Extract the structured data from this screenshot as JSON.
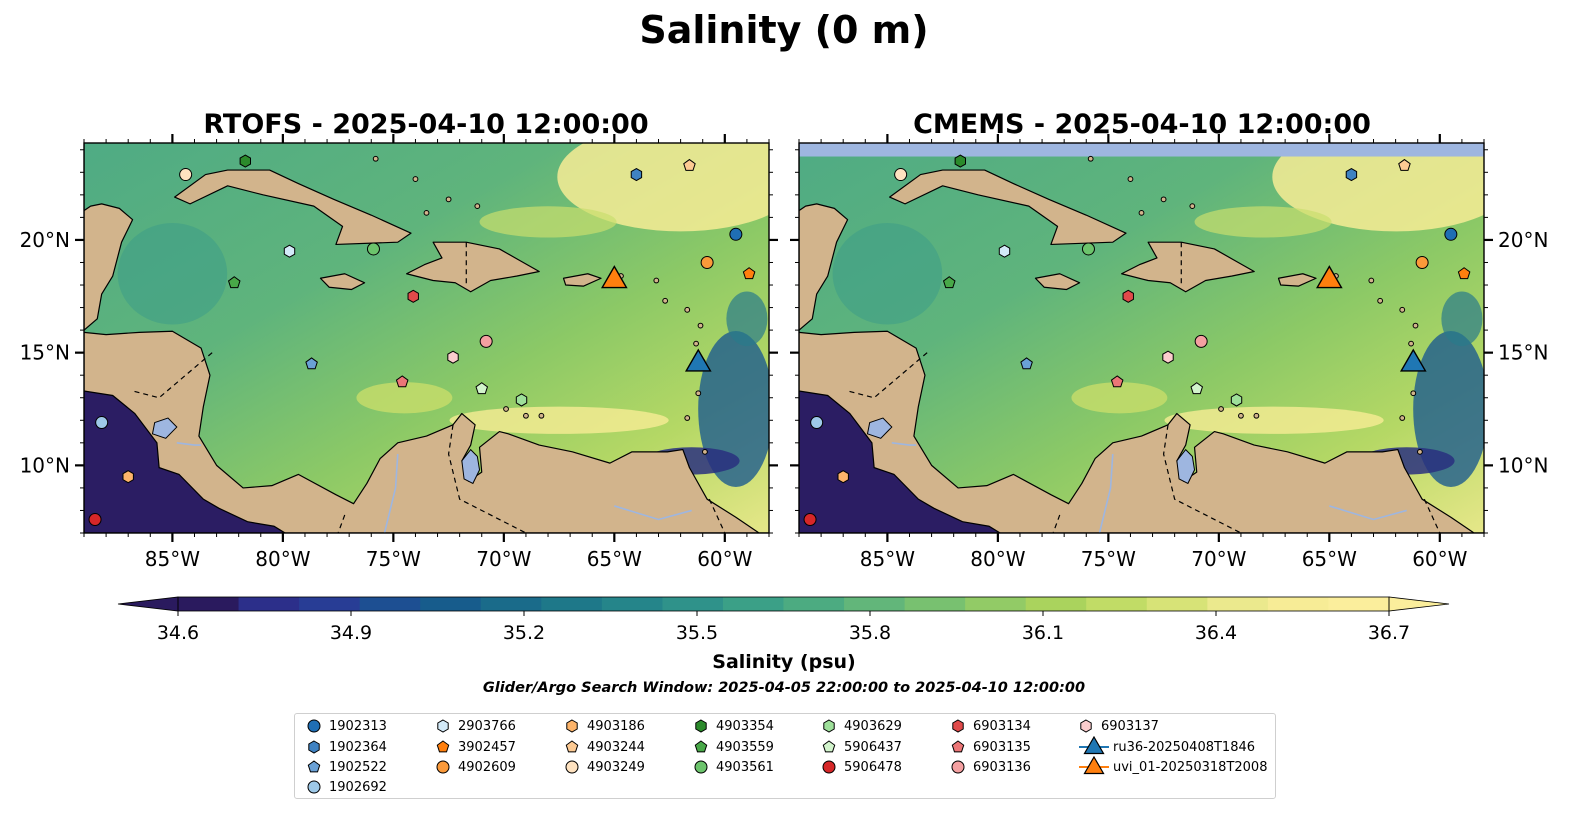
{
  "figure": {
    "suptitle": "Salinity (0 m)",
    "search_window": "Glider/Argo Search Window: 2025-04-05 22:00:00 to 2025-04-10 12:00:00"
  },
  "panels": [
    {
      "id": "rtofs",
      "title": "RTOFS - 2025-04-10 12:00:00"
    },
    {
      "id": "cmems",
      "title": "CMEMS - 2025-04-10 12:00:00"
    }
  ],
  "axes": {
    "lon_ticks": [
      "85°W",
      "80°W",
      "75°W",
      "70°W",
      "65°W",
      "60°W"
    ],
    "lon_values": [
      -85,
      -80,
      -75,
      -70,
      -65,
      -60
    ],
    "lat_ticks": [
      "20°N",
      "15°N",
      "10°N"
    ],
    "lat_values": [
      20,
      15,
      10
    ],
    "lon_range": [
      -89,
      -58
    ],
    "lat_range": [
      7,
      24.3
    ]
  },
  "colorbar": {
    "label": "Salinity (psu)",
    "ticks": [
      "34.6",
      "34.9",
      "35.2",
      "35.5",
      "35.8",
      "36.1",
      "36.4",
      "36.7"
    ],
    "range": [
      34.6,
      36.7
    ],
    "extend": "both",
    "colors": [
      "#2a1a5e",
      "#2c2f8a",
      "#283d95",
      "#1d4f92",
      "#175c8c",
      "#1a6b8a",
      "#1e7889",
      "#25858a",
      "#2f928a",
      "#3ba087",
      "#4cab81",
      "#62b67a",
      "#78c170",
      "#92cb66",
      "#aad35d",
      "#c1dc66",
      "#d7e377",
      "#ebe98d",
      "#f7ec96",
      "#fbee9c"
    ]
  },
  "colors": {
    "land": "#d2b48c",
    "lake": "#9eb6e0",
    "deep": "#2b1d63",
    "ocean_mid": "#55ad83",
    "ocean_high": "#f7ec95",
    "glider_ru36": "#1f77b4",
    "glider_uvi": "#ff7f0e"
  },
  "legend": {
    "items": [
      {
        "label": "1902313",
        "marker": "circle",
        "color": "#1f6eb4"
      },
      {
        "label": "1902364",
        "marker": "hexagon",
        "color": "#3f82c2"
      },
      {
        "label": "1902522",
        "marker": "pentagon",
        "color": "#6aa1d6"
      },
      {
        "label": "1902692",
        "marker": "circle",
        "color": "#9ec9e8"
      },
      {
        "label": "2903766",
        "marker": "hexagon",
        "color": "#d3eaf8"
      },
      {
        "label": "3902457",
        "marker": "pentagon",
        "color": "#ff7f0e"
      },
      {
        "label": "4902609",
        "marker": "circle",
        "color": "#fb9a3a"
      },
      {
        "label": "4903186",
        "marker": "hexagon",
        "color": "#fdb46a"
      },
      {
        "label": "4903244",
        "marker": "pentagon",
        "color": "#fdca93"
      },
      {
        "label": "4903249",
        "marker": "circle",
        "color": "#fee2c0"
      },
      {
        "label": "4903354",
        "marker": "hexagon",
        "color": "#2b8a2b"
      },
      {
        "label": "4903559",
        "marker": "pentagon",
        "color": "#48a848"
      },
      {
        "label": "4903561",
        "marker": "circle",
        "color": "#6cc46c"
      },
      {
        "label": "4903629",
        "marker": "hexagon",
        "color": "#9ee09a"
      },
      {
        "label": "5906437",
        "marker": "pentagon",
        "color": "#d2f4cc"
      },
      {
        "label": "5906478",
        "marker": "circle",
        "color": "#d62728"
      },
      {
        "label": "6903134",
        "marker": "hexagon",
        "color": "#e04a4a"
      },
      {
        "label": "6903135",
        "marker": "pentagon",
        "color": "#ec7677"
      },
      {
        "label": "6903136",
        "marker": "circle",
        "color": "#f4a0a1"
      },
      {
        "label": "6903137",
        "marker": "hexagon",
        "color": "#fbcdcd"
      },
      {
        "label": "ru36-20250408T1846",
        "marker": "triangle",
        "color": "#1f77b4"
      },
      {
        "label": "uvi_01-20250318T2008",
        "marker": "triangle",
        "color": "#ff7f0e"
      }
    ]
  },
  "floats": [
    {
      "id": "1902313",
      "lon": -59.5,
      "lat": 20.25
    },
    {
      "id": "1902364",
      "lon": -64.0,
      "lat": 22.9
    },
    {
      "id": "1902522",
      "lon": -78.7,
      "lat": 14.5
    },
    {
      "id": "1902692",
      "lon": -88.2,
      "lat": 11.9
    },
    {
      "id": "2903766",
      "lon": -79.7,
      "lat": 19.5
    },
    {
      "id": "3902457",
      "lon": -58.9,
      "lat": 18.5
    },
    {
      "id": "4902609",
      "lon": -60.8,
      "lat": 19.0
    },
    {
      "id": "4903186",
      "lon": -87.0,
      "lat": 9.5
    },
    {
      "id": "4903244",
      "lon": -61.6,
      "lat": 23.3
    },
    {
      "id": "4903249",
      "lon": -84.4,
      "lat": 22.9
    },
    {
      "id": "4903354",
      "lon": -81.7,
      "lat": 23.5
    },
    {
      "id": "4903559",
      "lon": -82.2,
      "lat": 18.1
    },
    {
      "id": "4903561",
      "lon": -75.9,
      "lat": 19.6
    },
    {
      "id": "4903629",
      "lon": -69.2,
      "lat": 12.9
    },
    {
      "id": "5906437",
      "lon": -71.0,
      "lat": 13.4
    },
    {
      "id": "5906478",
      "lon": -88.5,
      "lat": 7.6
    },
    {
      "id": "6903134",
      "lon": -74.1,
      "lat": 17.5
    },
    {
      "id": "6903135",
      "lon": -74.6,
      "lat": 13.7
    },
    {
      "id": "6903136",
      "lon": -70.8,
      "lat": 15.5
    },
    {
      "id": "6903137",
      "lon": -72.3,
      "lat": 14.8
    }
  ],
  "gliders": [
    {
      "id": "ru36-20250408T1846",
      "lon": -61.2,
      "lat": 14.5
    },
    {
      "id": "uvi_01-20250318T2008",
      "lon": -65.0,
      "lat": 18.2
    }
  ]
}
